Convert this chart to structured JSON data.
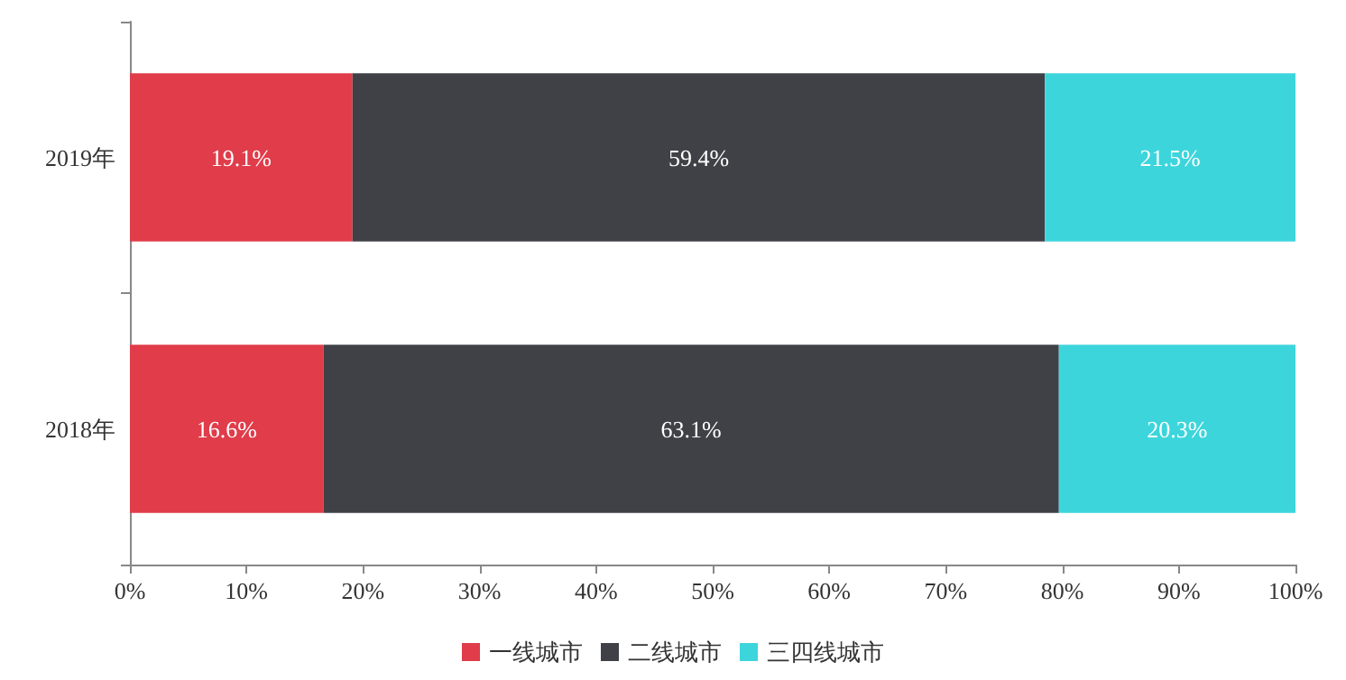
{
  "chart_data": {
    "type": "bar",
    "orientation": "horizontal",
    "stacked": true,
    "categories": [
      "2019年",
      "2018年"
    ],
    "series": [
      {
        "name": "一线城市",
        "color": "#e03c4a",
        "values": [
          19.1,
          16.6
        ],
        "value_labels": [
          "19.1%",
          "16.6%"
        ]
      },
      {
        "name": "二线城市",
        "color": "#3f4147",
        "values": [
          59.4,
          63.1
        ],
        "value_labels": [
          "59.4%",
          "63.1%"
        ]
      },
      {
        "name": "三四线城市",
        "color": "#3dd5dc",
        "values": [
          21.5,
          20.3
        ],
        "value_labels": [
          "21.5%",
          "20.3%"
        ]
      }
    ],
    "xlim": [
      0,
      100
    ],
    "xticks": [
      {
        "value": 0,
        "label": "0%"
      },
      {
        "value": 10,
        "label": "10%"
      },
      {
        "value": 20,
        "label": "20%"
      },
      {
        "value": 30,
        "label": "30%"
      },
      {
        "value": 40,
        "label": "40%"
      },
      {
        "value": 50,
        "label": "50%"
      },
      {
        "value": 60,
        "label": "60%"
      },
      {
        "value": 70,
        "label": "70%"
      },
      {
        "value": 80,
        "label": "80%"
      },
      {
        "value": 90,
        "label": "90%"
      },
      {
        "value": 100,
        "label": "100%"
      }
    ],
    "grid": false,
    "legend": "bottom"
  }
}
